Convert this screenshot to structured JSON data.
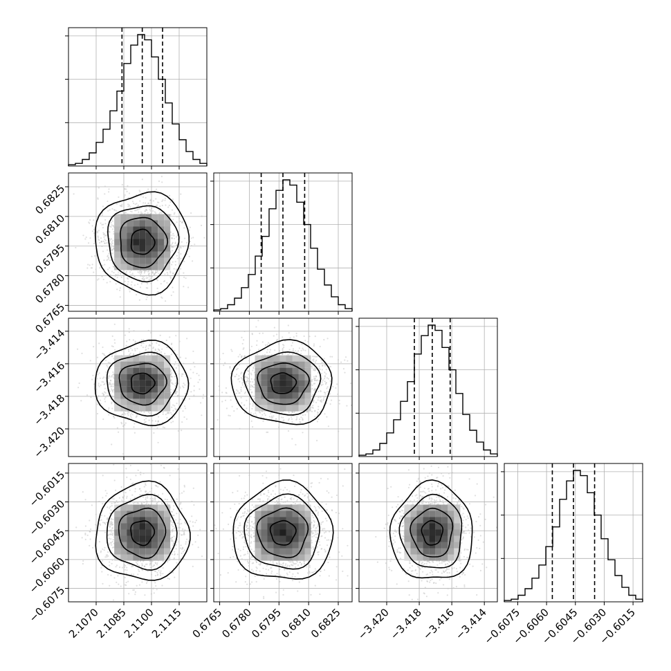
{
  "chart_data": {
    "type": "corner",
    "params": [
      {
        "mean": 2.1095,
        "sd": 0.0011,
        "range": [
          2.1055,
          2.113
        ],
        "ticks": [
          2.107,
          2.1085,
          2.11,
          2.1115
        ],
        "tick_labels": [
          "2.1070",
          "2.1085",
          "2.1100",
          "2.1115"
        ],
        "quantiles": [
          2.1084,
          2.1095,
          2.1106
        ]
      },
      {
        "mean": 0.6797,
        "sd": 0.0011,
        "range": [
          0.6762,
          0.6832
        ],
        "ticks": [
          0.6765,
          0.678,
          0.6795,
          0.681,
          0.6825
        ],
        "tick_labels": [
          "0.6765",
          "0.6780",
          "0.6795",
          "0.6810",
          "0.6825"
        ],
        "quantiles": [
          0.6786,
          0.6797,
          0.6808
        ]
      },
      {
        "mean": -3.4172,
        "sd": 0.0011,
        "range": [
          -3.4217,
          -3.4132
        ],
        "ticks": [
          -3.42,
          -3.418,
          -3.416,
          -3.414
        ],
        "tick_labels": [
          "−3.420",
          "−3.418",
          "−3.416",
          "−3.414"
        ],
        "quantiles": [
          -3.4183,
          -3.4172,
          -3.4161
        ]
      },
      {
        "mean": -0.6046,
        "sd": 0.0011,
        "range": [
          -0.6082,
          -0.601
        ],
        "ticks": [
          -0.6075,
          -0.606,
          -0.6045,
          -0.603,
          -0.6015
        ],
        "tick_labels": [
          "−0.6075",
          "−0.6060",
          "−0.6045",
          "−0.6030",
          "−0.6015"
        ],
        "quantiles": [
          -0.6057,
          -0.6046,
          -0.6035
        ]
      }
    ],
    "histogram": {
      "bins": 20,
      "normalized_counts": [
        0.01,
        0.02,
        0.05,
        0.1,
        0.18,
        0.28,
        0.42,
        0.57,
        0.78,
        0.92,
        1.0,
        0.96,
        0.83,
        0.66,
        0.48,
        0.32,
        0.2,
        0.11,
        0.05,
        0.02
      ]
    },
    "density": {
      "levels_sigma": [
        0.5,
        1.0,
        1.5,
        2.0
      ],
      "n_scatter_points": 1400
    },
    "colors": {
      "line": "#000000",
      "scatter": "#c4c4c4",
      "grid": "#b0b0b0"
    },
    "grid": true,
    "n_params": 4
  }
}
